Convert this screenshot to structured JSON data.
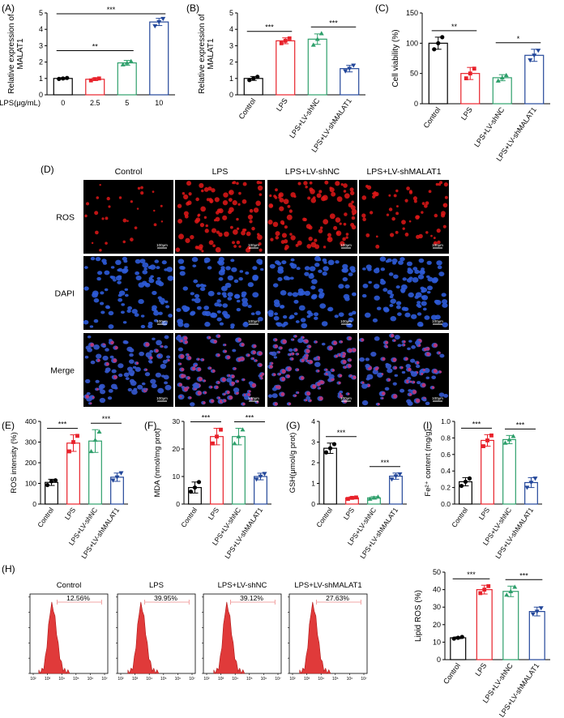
{
  "colors": {
    "control": "#000000",
    "lps": "#e8212a",
    "shnc": "#2e9f6b",
    "shmalat1": "#23479a",
    "flow_fill": "#e03a3a"
  },
  "group_labels": [
    "Control",
    "LPS",
    "LPS+LV-shNC",
    "LPS+LV-shMALAT1"
  ],
  "panels": {
    "A": "(A)",
    "B": "(B)",
    "C": "(C)",
    "D": "(D)",
    "E": "(E)",
    "F": "(F)",
    "G": "(G)",
    "I": "(I)",
    "H": "(H)"
  },
  "chart_data": [
    {
      "id": "A",
      "type": "bar",
      "categories": [
        "0",
        "2.5",
        "5",
        "10"
      ],
      "x_prefix": "LPS(μg/mL)",
      "values": [
        1.0,
        0.95,
        1.95,
        4.45
      ],
      "errors": [
        0.05,
        0.08,
        0.15,
        0.22
      ],
      "points": [
        [
          0.97,
          1.0,
          1.03
        ],
        [
          0.88,
          0.96,
          1.0
        ],
        [
          1.85,
          1.95,
          2.05
        ],
        [
          4.2,
          4.45,
          4.65
        ]
      ],
      "ylabel": "Relative expression of MALAT1",
      "ylim": [
        0,
        5
      ],
      "yticks": [
        0,
        1,
        2,
        3,
        4,
        5
      ],
      "significance": [
        {
          "from": 0,
          "to": 2,
          "label": "**"
        },
        {
          "from": 0,
          "to": 3,
          "label": "***"
        }
      ]
    },
    {
      "id": "B",
      "type": "bar",
      "categories": [
        "Control",
        "LPS",
        "LPS+LV-shNC",
        "LPS+LV-shMALAT1"
      ],
      "values": [
        1.0,
        3.3,
        3.4,
        1.6
      ],
      "errors": [
        0.12,
        0.18,
        0.32,
        0.2
      ],
      "points": [
        [
          0.9,
          1.0,
          1.1
        ],
        [
          3.15,
          3.3,
          3.45
        ],
        [
          3.05,
          3.4,
          3.75
        ],
        [
          1.45,
          1.6,
          1.8
        ]
      ],
      "ylabel": "Relative expression of MALAT1",
      "ylim": [
        0,
        5
      ],
      "yticks": [
        0,
        1,
        2,
        3,
        4,
        5
      ],
      "significance": [
        {
          "from": 0,
          "to": 1,
          "label": "***"
        },
        {
          "from": 2,
          "to": 3,
          "label": "***"
        }
      ]
    },
    {
      "id": "C",
      "type": "bar",
      "categories": [
        "Control",
        "LPS",
        "LPS+LV-shNC",
        "LPS+LV-shMALAT1"
      ],
      "values": [
        100,
        50,
        43,
        80
      ],
      "errors": [
        10,
        10,
        5,
        10
      ],
      "points": [
        [
          90,
          100,
          110
        ],
        [
          42,
          50,
          58
        ],
        [
          38,
          43,
          47
        ],
        [
          72,
          80,
          88
        ]
      ],
      "ylabel": "Cell viability (%)",
      "ylim": [
        0,
        150
      ],
      "yticks": [
        0,
        50,
        100,
        150
      ],
      "significance": [
        {
          "from": 0,
          "to": 1,
          "label": "**"
        },
        {
          "from": 2,
          "to": 3,
          "label": "*"
        }
      ]
    },
    {
      "id": "E",
      "type": "bar",
      "categories": [
        "Control",
        "LPS",
        "LPS+LV-shNC",
        "LPS+LV-shMALAT1"
      ],
      "values": [
        105,
        295,
        305,
        130
      ],
      "errors": [
        15,
        40,
        55,
        20
      ],
      "points": [
        [
          92,
          110,
          115
        ],
        [
          255,
          300,
          330
        ],
        [
          255,
          310,
          350
        ],
        [
          115,
          130,
          150
        ]
      ],
      "ylabel": "ROS intensity (%)",
      "ylim": [
        0,
        400
      ],
      "yticks": [
        0,
        100,
        200,
        300,
        400
      ],
      "significance": [
        {
          "from": 0,
          "to": 1,
          "label": "***"
        },
        {
          "from": 2,
          "to": 3,
          "label": "***"
        }
      ]
    },
    {
      "id": "F",
      "type": "bar",
      "categories": [
        "Control",
        "LPS",
        "LPS+LV-shNC",
        "LPS+LV-shMALAT1"
      ],
      "values": [
        6,
        24.5,
        24.5,
        10
      ],
      "errors": [
        2,
        3,
        3,
        1.2
      ],
      "points": [
        [
          4.5,
          6,
          8
        ],
        [
          22,
          24.5,
          27
        ],
        [
          22,
          24.5,
          27
        ],
        [
          9,
          10,
          11
        ]
      ],
      "ylabel": "MDA (nmol/mg prot)",
      "ylim": [
        0,
        30
      ],
      "yticks": [
        0,
        10,
        20,
        30
      ],
      "significance": [
        {
          "from": 0,
          "to": 1,
          "label": "***"
        },
        {
          "from": 2,
          "to": 3,
          "label": "***"
        }
      ]
    },
    {
      "id": "G",
      "type": "bar",
      "categories": [
        "Control",
        "LPS",
        "LPS+LV-shNC",
        "LPS+LV-shMALAT1"
      ],
      "values": [
        2.7,
        0.3,
        0.3,
        1.35
      ],
      "errors": [
        0.25,
        0.05,
        0.06,
        0.15
      ],
      "points": [
        [
          2.5,
          2.7,
          2.9
        ],
        [
          0.25,
          0.3,
          0.32
        ],
        [
          0.25,
          0.3,
          0.35
        ],
        [
          1.2,
          1.35,
          1.45
        ]
      ],
      "ylabel": "GSH(μmol/g prot)",
      "ylim": [
        0,
        4
      ],
      "yticks": [
        0,
        1,
        2,
        3,
        4
      ],
      "significance": [
        {
          "from": 0,
          "to": 1,
          "label": "***"
        },
        {
          "from": 2,
          "to": 3,
          "label": "***"
        }
      ]
    },
    {
      "id": "I",
      "type": "bar",
      "categories": [
        "Control",
        "LPS",
        "LPS+LV-shNC",
        "LPS+LV-shMALAT1"
      ],
      "values": [
        0.27,
        0.77,
        0.78,
        0.26
      ],
      "errors": [
        0.05,
        0.07,
        0.05,
        0.06
      ],
      "points": [
        [
          0.22,
          0.27,
          0.31
        ],
        [
          0.7,
          0.77,
          0.83
        ],
        [
          0.74,
          0.78,
          0.82
        ],
        [
          0.2,
          0.26,
          0.31
        ]
      ],
      "ylabel": "Fe²⁺ content (mg/g)",
      "ylim": [
        0,
        1.0
      ],
      "yticks": [
        0.0,
        0.2,
        0.4,
        0.6,
        0.8,
        1.0
      ],
      "significance": [
        {
          "from": 0,
          "to": 1,
          "label": "***"
        },
        {
          "from": 2,
          "to": 3,
          "label": "***"
        }
      ]
    },
    {
      "id": "H",
      "type": "bar",
      "categories": [
        "Control",
        "LPS",
        "LPS+LV-shNC",
        "LPS+LV-shMALAT1"
      ],
      "values": [
        12.5,
        40,
        39,
        27.5
      ],
      "errors": [
        0.5,
        2.5,
        3,
        2.5
      ],
      "points": [
        [
          12,
          12.5,
          13
        ],
        [
          38,
          40,
          42
        ],
        [
          37,
          39,
          41.5
        ],
        [
          26,
          27.5,
          29.5
        ]
      ],
      "ylabel": "Lipid ROS (%)",
      "ylim": [
        0,
        50
      ],
      "yticks": [
        0,
        10,
        20,
        30,
        40,
        50
      ],
      "significance": [
        {
          "from": 0,
          "to": 1,
          "label": "***"
        },
        {
          "from": 2,
          "to": 3,
          "label": "***"
        }
      ]
    }
  ],
  "microscopy": {
    "columns": [
      "Control",
      "LPS",
      "LPS+LV-shNC",
      "LPS+LV-shMALAT1"
    ],
    "rows": [
      "ROS",
      "DAPI",
      "Merge"
    ],
    "scale_bar": "100μm"
  },
  "flow_cytometry": {
    "panels": [
      {
        "title": "Control",
        "percent": "12.56%"
      },
      {
        "title": "LPS",
        "percent": "39.95%"
      },
      {
        "title": "LPS+LV-shNC",
        "percent": "39.12%"
      },
      {
        "title": "LPS+LV-shMALAT1",
        "percent": "27.63%"
      }
    ],
    "x_ticks": [
      "10²",
      "10³",
      "10⁴",
      "10⁵",
      "10⁶",
      "10⁷"
    ]
  }
}
